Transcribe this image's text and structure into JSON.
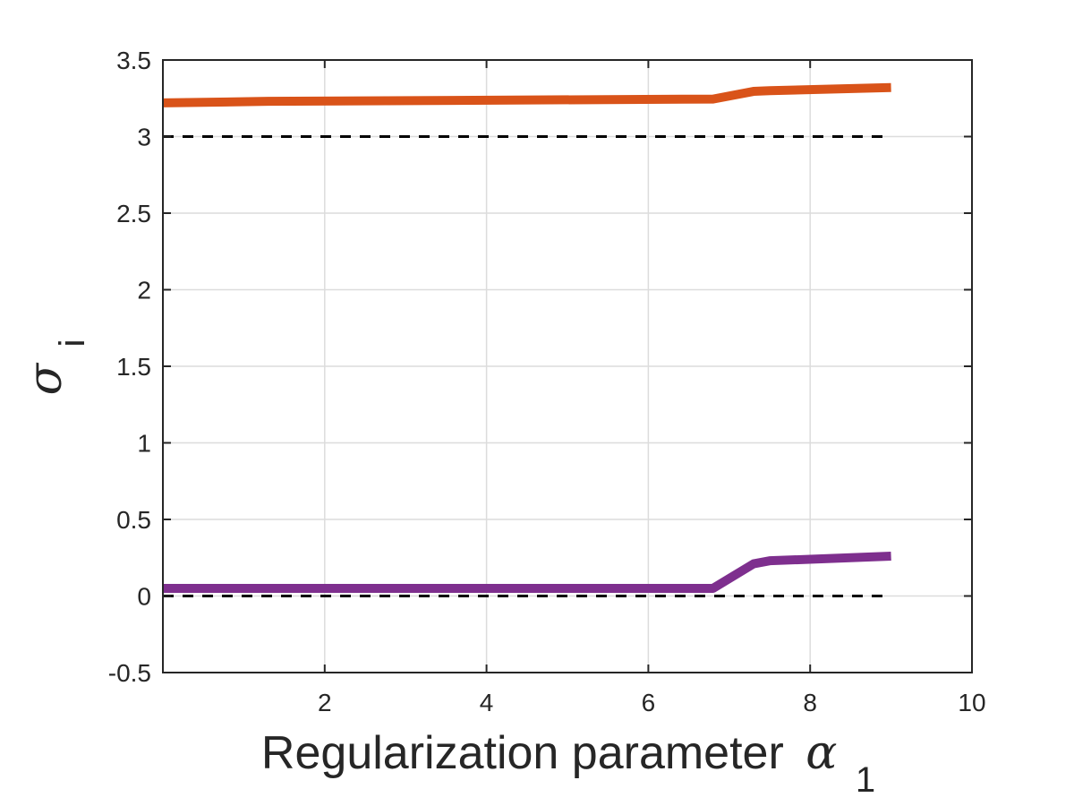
{
  "chart_data": {
    "type": "line",
    "title": "",
    "xlabel": "Regularization parameter",
    "xlabel_symbol": "α",
    "xlabel_subscript": "1",
    "ylabel_symbol": "σ",
    "ylabel_subscript": "i",
    "xlim": [
      0,
      10
    ],
    "ylim": [
      -0.5,
      3.5
    ],
    "xticks": [
      2,
      4,
      6,
      8,
      10
    ],
    "xtick_labels": [
      "2",
      "4",
      "6",
      "8",
      "10"
    ],
    "yticks": [
      -0.5,
      0,
      0.5,
      1,
      1.5,
      2,
      2.5,
      3,
      3.5
    ],
    "ytick_labels": [
      "-0.5",
      "0",
      "0.5",
      "1",
      "1.5",
      "2",
      "2.5",
      "3",
      "3.5"
    ],
    "grid": true,
    "reference_lines": [
      {
        "y": 3,
        "style": "dashed",
        "color": "#000000"
      },
      {
        "y": 0,
        "style": "dashed",
        "color": "#000000"
      }
    ],
    "series": [
      {
        "color": "#D95319",
        "x": [
          0,
          1.3,
          6.8,
          7.3,
          7.5,
          9
        ],
        "y": [
          3.22,
          3.23,
          3.245,
          3.295,
          3.3,
          3.32
        ]
      },
      {
        "color": "#7E2F8E",
        "x": [
          0,
          6.8,
          7.3,
          7.5,
          9
        ],
        "y": [
          0.05,
          0.05,
          0.21,
          0.23,
          0.26
        ]
      }
    ]
  }
}
